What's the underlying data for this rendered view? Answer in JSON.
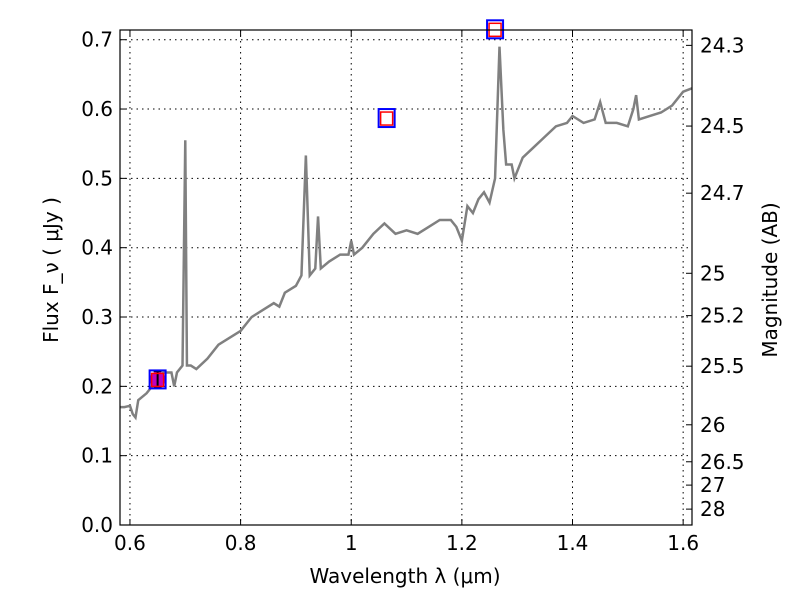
{
  "chart_data": {
    "type": "line",
    "xlabel": "Wavelength  λ (μm)",
    "ylabel": "Flux  F_ν  ( μJy )",
    "ylabel_right": "Magnitude (AB)",
    "xlim": [
      0.582,
      1.616
    ],
    "ylim": [
      0.0,
      0.714
    ],
    "grid": true,
    "xticks": [
      {
        "v": 0.6,
        "label": "0.6"
      },
      {
        "v": 0.8,
        "label": "0.8"
      },
      {
        "v": 1.0,
        "label": "1"
      },
      {
        "v": 1.2,
        "label": "1.2"
      },
      {
        "v": 1.4,
        "label": "1.4"
      },
      {
        "v": 1.6,
        "label": "1.6"
      }
    ],
    "yticks": [
      {
        "v": 0.0,
        "label": "0.0"
      },
      {
        "v": 0.1,
        "label": "0.1"
      },
      {
        "v": 0.2,
        "label": "0.2"
      },
      {
        "v": 0.3,
        "label": "0.3"
      },
      {
        "v": 0.4,
        "label": "0.4"
      },
      {
        "v": 0.5,
        "label": "0.5"
      },
      {
        "v": 0.6,
        "label": "0.6"
      },
      {
        "v": 0.7,
        "label": "0.7"
      }
    ],
    "mag_ticks": [
      {
        "v": 24.3,
        "label": "24.3"
      },
      {
        "v": 24.5,
        "label": "24.5"
      },
      {
        "v": 24.7,
        "label": "24.7"
      },
      {
        "v": 25,
        "label": "25"
      },
      {
        "v": 25.2,
        "label": "25.2"
      },
      {
        "v": 25.5,
        "label": "25.5"
      },
      {
        "v": 26,
        "label": "26"
      },
      {
        "v": 26.5,
        "label": "26.5"
      },
      {
        "v": 27,
        "label": "27"
      },
      {
        "v": 28,
        "label": "28"
      }
    ],
    "spectrum": {
      "color": "#808080",
      "x": [
        0.582,
        0.59,
        0.6,
        0.605,
        0.61,
        0.615,
        0.63,
        0.65,
        0.66,
        0.675,
        0.68,
        0.685,
        0.695,
        0.7,
        0.703,
        0.71,
        0.72,
        0.74,
        0.76,
        0.8,
        0.82,
        0.84,
        0.86,
        0.87,
        0.88,
        0.9,
        0.91,
        0.918,
        0.925,
        0.935,
        0.94,
        0.945,
        0.96,
        0.98,
        0.995,
        1.0,
        1.005,
        1.02,
        1.04,
        1.06,
        1.08,
        1.1,
        1.12,
        1.14,
        1.16,
        1.18,
        1.19,
        1.2,
        1.21,
        1.22,
        1.23,
        1.24,
        1.25,
        1.26,
        1.268,
        1.275,
        1.28,
        1.29,
        1.295,
        1.31,
        1.33,
        1.35,
        1.37,
        1.39,
        1.4,
        1.42,
        1.44,
        1.45,
        1.46,
        1.48,
        1.5,
        1.51,
        1.515,
        1.52,
        1.54,
        1.56,
        1.58,
        1.6,
        1.616
      ],
      "y": [
        0.17,
        0.17,
        0.172,
        0.16,
        0.155,
        0.18,
        0.19,
        0.21,
        0.22,
        0.22,
        0.2,
        0.22,
        0.23,
        0.555,
        0.23,
        0.23,
        0.225,
        0.24,
        0.26,
        0.28,
        0.3,
        0.31,
        0.32,
        0.315,
        0.335,
        0.345,
        0.36,
        0.533,
        0.36,
        0.37,
        0.445,
        0.37,
        0.38,
        0.39,
        0.39,
        0.41,
        0.39,
        0.4,
        0.42,
        0.435,
        0.42,
        0.425,
        0.42,
        0.43,
        0.44,
        0.44,
        0.43,
        0.41,
        0.46,
        0.45,
        0.47,
        0.48,
        0.465,
        0.5,
        0.69,
        0.57,
        0.52,
        0.52,
        0.5,
        0.53,
        0.545,
        0.56,
        0.575,
        0.58,
        0.59,
        0.58,
        0.585,
        0.61,
        0.58,
        0.58,
        0.575,
        0.6,
        0.62,
        0.585,
        0.59,
        0.595,
        0.605,
        0.625,
        0.63
      ]
    },
    "observed": [
      {
        "x": 0.65,
        "y": 0.21,
        "err": 0.012,
        "color": "#bf00bf"
      }
    ],
    "model_points": [
      {
        "x": 0.65,
        "y": 0.21
      },
      {
        "x": 1.064,
        "y": 0.587
      },
      {
        "x": 1.26,
        "y": 0.715
      }
    ],
    "colors": {
      "model_outer": "#0000ff",
      "model_inner": "#ff0000"
    }
  }
}
